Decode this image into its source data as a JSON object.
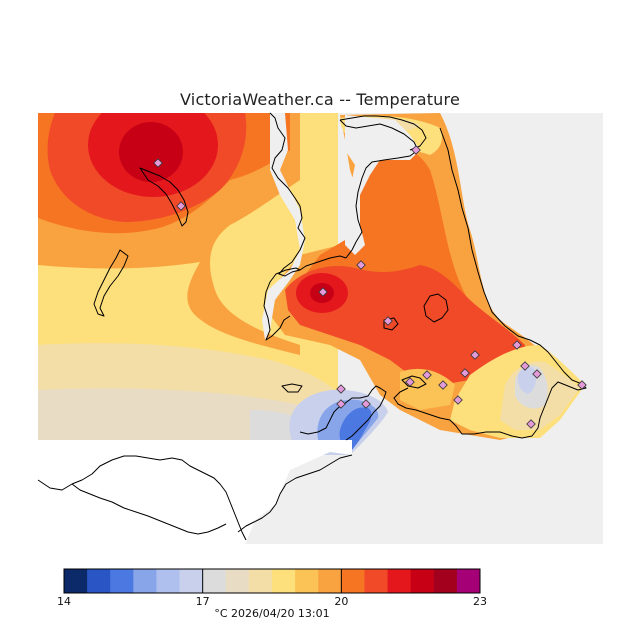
{
  "title": "VictoriaWeather.ca -- Temperature",
  "footer": "°C   2026/04/20  13:01",
  "colors": {
    "background_panel": "#efefef",
    "coastline": "#000000",
    "station_marker": "#e29ad9"
  },
  "legend": {
    "min": 14,
    "max": 23,
    "tick_labels": [
      "14",
      "17",
      "20",
      "23"
    ],
    "tick_values": [
      14,
      17,
      20,
      23
    ],
    "bins": [
      {
        "from": 14.0,
        "to": 14.5,
        "color": "#0c2a6a"
      },
      {
        "from": 14.5,
        "to": 15.0,
        "color": "#2a55c5"
      },
      {
        "from": 15.0,
        "to": 15.5,
        "color": "#4c78e2"
      },
      {
        "from": 15.5,
        "to": 16.0,
        "color": "#88a5ea"
      },
      {
        "from": 16.0,
        "to": 16.5,
        "color": "#afc0ee"
      },
      {
        "from": 16.5,
        "to": 17.0,
        "color": "#c8d0ec"
      },
      {
        "from": 17.0,
        "to": 17.5,
        "color": "#dcdcdc"
      },
      {
        "from": 17.5,
        "to": 18.0,
        "color": "#e8dcc4"
      },
      {
        "from": 18.0,
        "to": 18.5,
        "color": "#f4dea8"
      },
      {
        "from": 18.5,
        "to": 19.0,
        "color": "#fde07b"
      },
      {
        "from": 19.0,
        "to": 19.5,
        "color": "#fbc355"
      },
      {
        "from": 19.5,
        "to": 20.0,
        "color": "#f9a340"
      },
      {
        "from": 20.0,
        "to": 20.5,
        "color": "#f67522"
      },
      {
        "from": 20.5,
        "to": 21.0,
        "color": "#f14a29"
      },
      {
        "from": 21.0,
        "to": 21.5,
        "color": "#e4171c"
      },
      {
        "from": 21.5,
        "to": 22.0,
        "color": "#c70016"
      },
      {
        "from": 22.0,
        "to": 22.5,
        "color": "#a3001d"
      },
      {
        "from": 22.5,
        "to": 23.0,
        "color": "#a60077"
      }
    ]
  },
  "stations_count": 18
}
